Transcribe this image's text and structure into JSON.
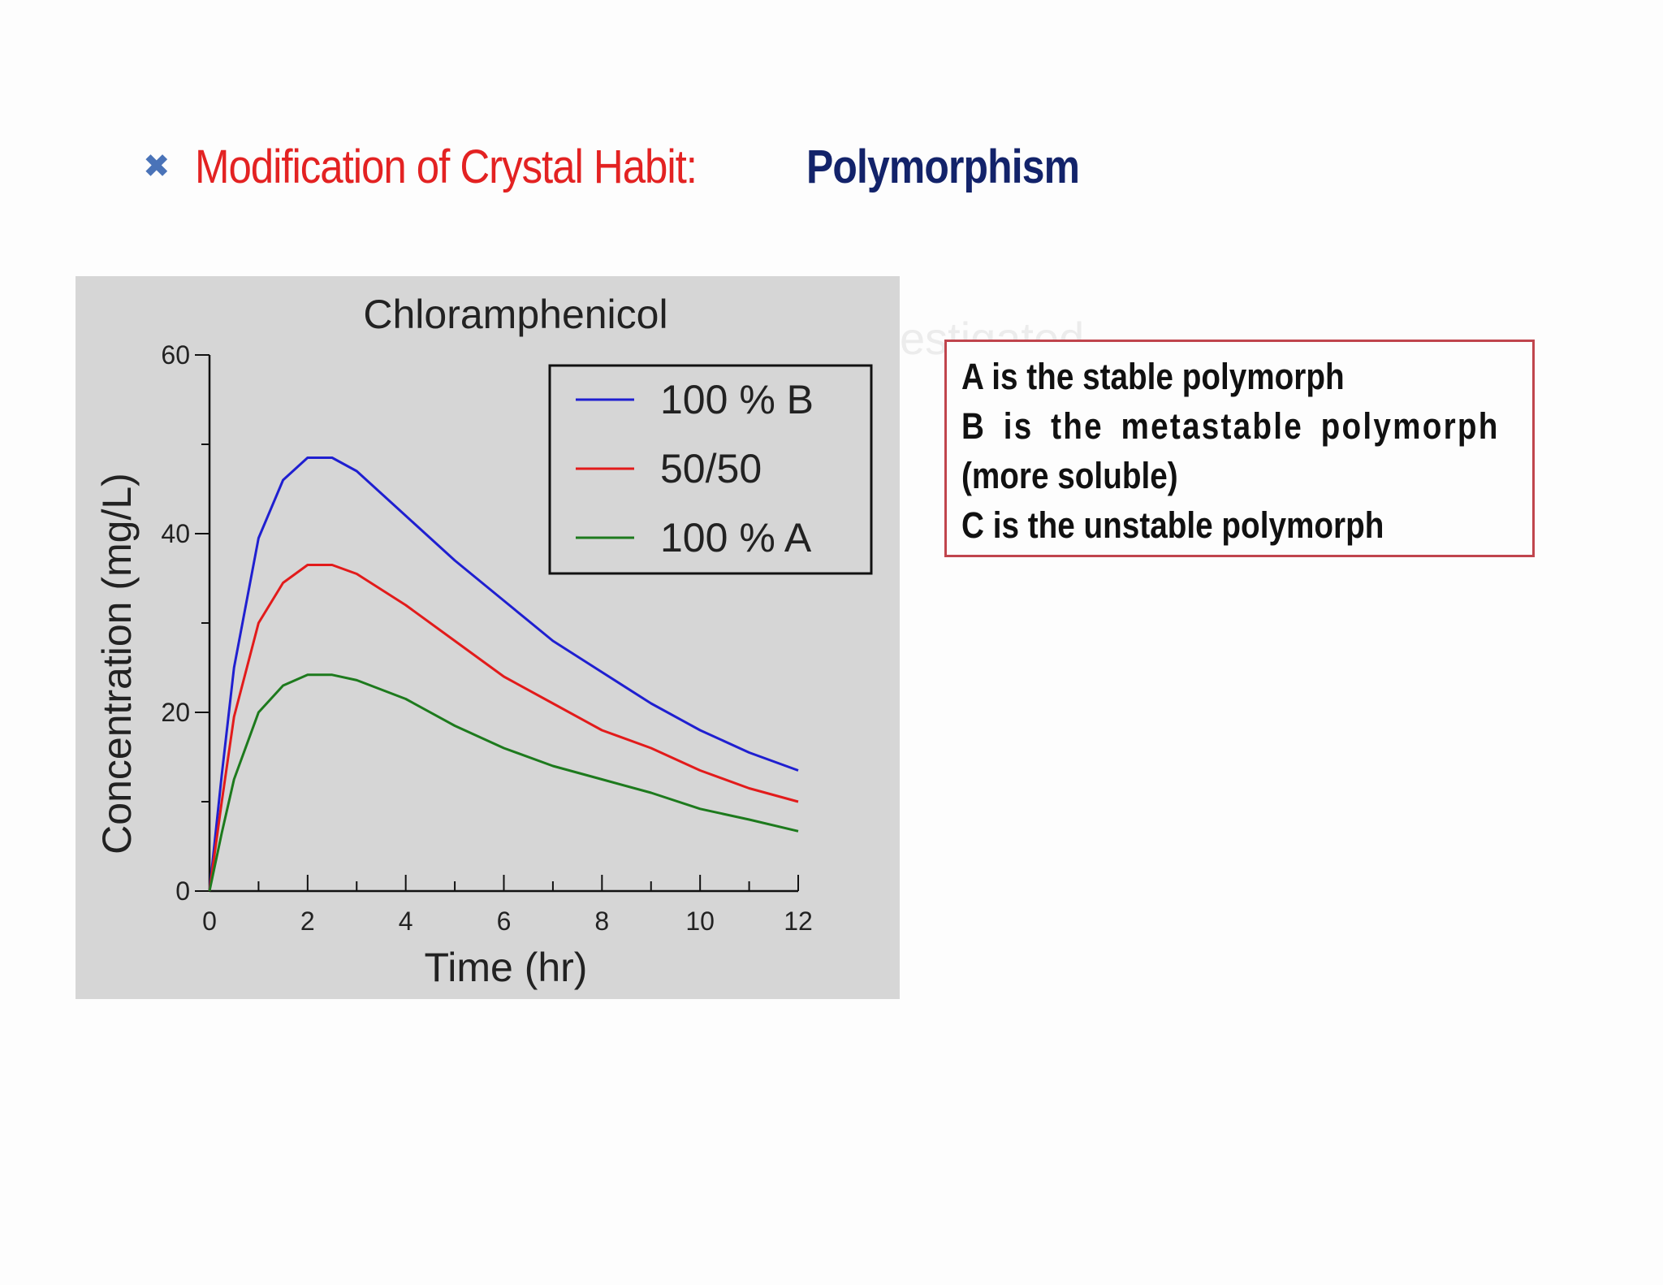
{
  "slide": {
    "bullet_icon": "x-bullet-icon",
    "title_prefix": "Modification of Crystal Habit: ",
    "title_highlight": "Polymorphism",
    "ghost_text": "estigated"
  },
  "note": {
    "lines": [
      "A  is the stable polymorph",
      "B  is  the  metastable  polymorph",
      "(more soluble)",
      "C  is the unstable polymorph"
    ]
  },
  "colors": {
    "title_red": "#e32222",
    "title_blue": "#13236a",
    "note_border": "#c0454d",
    "series_b": "#1f1fd0",
    "series_mix": "#e21b1b",
    "series_a": "#1d7a1d"
  },
  "chart_data": {
    "type": "line",
    "title": "Chloramphenicol",
    "xlabel": "Time (hr)",
    "ylabel": "Concentration (mg/L)",
    "xlim": [
      0,
      12
    ],
    "ylim": [
      0,
      60
    ],
    "xticks": [
      0,
      2,
      4,
      6,
      8,
      10,
      12
    ],
    "yticks": [
      0,
      20,
      40,
      60
    ],
    "legend_position": "top-right",
    "grid": false,
    "x": [
      0,
      0.25,
      0.5,
      1,
      1.5,
      2,
      2.5,
      3,
      4,
      5,
      6,
      7,
      8,
      9,
      10,
      11,
      12
    ],
    "series": [
      {
        "name": "100 % B",
        "color": "#1f1fd0",
        "values": [
          0,
          13,
          25,
          39.5,
          46,
          48.5,
          48.5,
          47,
          42,
          37,
          32.5,
          28,
          24.5,
          21,
          18,
          15.5,
          13.5
        ]
      },
      {
        "name": "50/50",
        "color": "#e21b1b",
        "values": [
          0,
          10,
          19.5,
          30,
          34.5,
          36.5,
          36.5,
          35.5,
          32,
          28,
          24,
          21,
          18,
          16,
          13.5,
          11.5,
          10
        ]
      },
      {
        "name": "100 % A",
        "color": "#1d7a1d",
        "values": [
          0,
          6.5,
          12.5,
          20,
          23,
          24.2,
          24.2,
          23.6,
          21.5,
          18.5,
          16,
          14,
          12.5,
          11,
          9.2,
          8,
          6.7
        ]
      }
    ]
  }
}
